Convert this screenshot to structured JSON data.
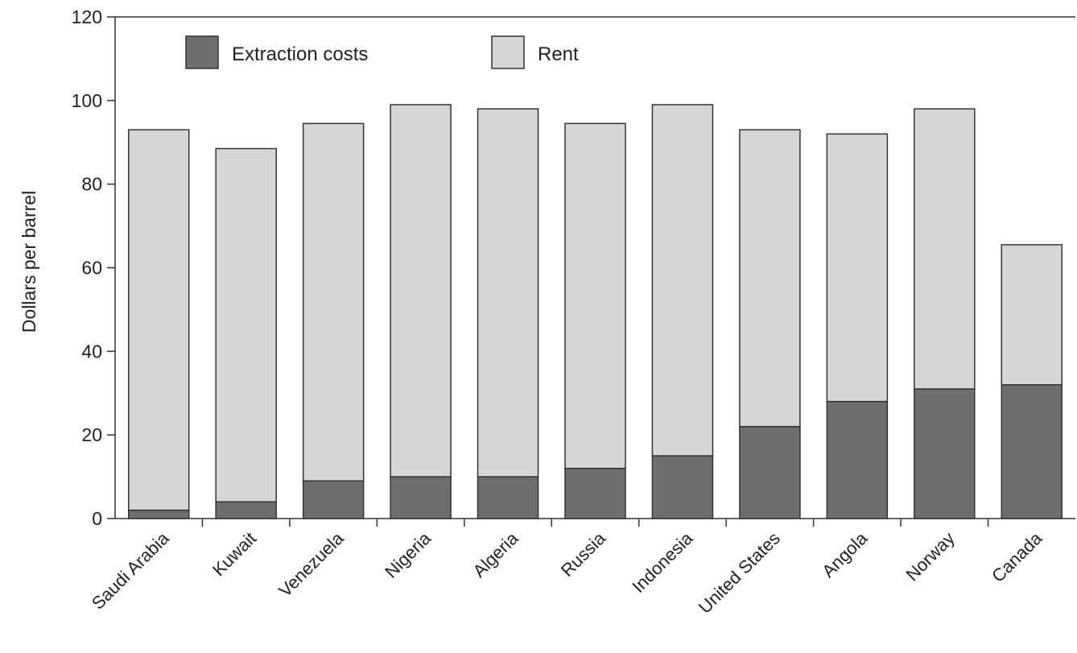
{
  "chart_data": {
    "type": "bar",
    "stacked": true,
    "ylabel": "Dollars per barrel",
    "xlabel": "",
    "title": "",
    "ylim": [
      0,
      120
    ],
    "yticks": [
      0,
      20,
      40,
      60,
      80,
      100,
      120
    ],
    "grid": false,
    "legend_position": "top-left",
    "categories": [
      "Saudi Arabia",
      "Kuwait",
      "Venezuela",
      "Nigeria",
      "Algeria",
      "Russia",
      "Indonesia",
      "United States",
      "Angola",
      "Norway",
      "Canada"
    ],
    "series": [
      {
        "name": "Extraction costs",
        "color": "#6e6e6e",
        "values": [
          2,
          4,
          9,
          10,
          10,
          12,
          15,
          22,
          28,
          31,
          32
        ]
      },
      {
        "name": "Rent",
        "color": "#d6d6d6",
        "values": [
          91,
          84.5,
          85.5,
          89,
          88,
          82.5,
          84,
          71,
          64,
          67,
          33.5
        ]
      }
    ]
  }
}
